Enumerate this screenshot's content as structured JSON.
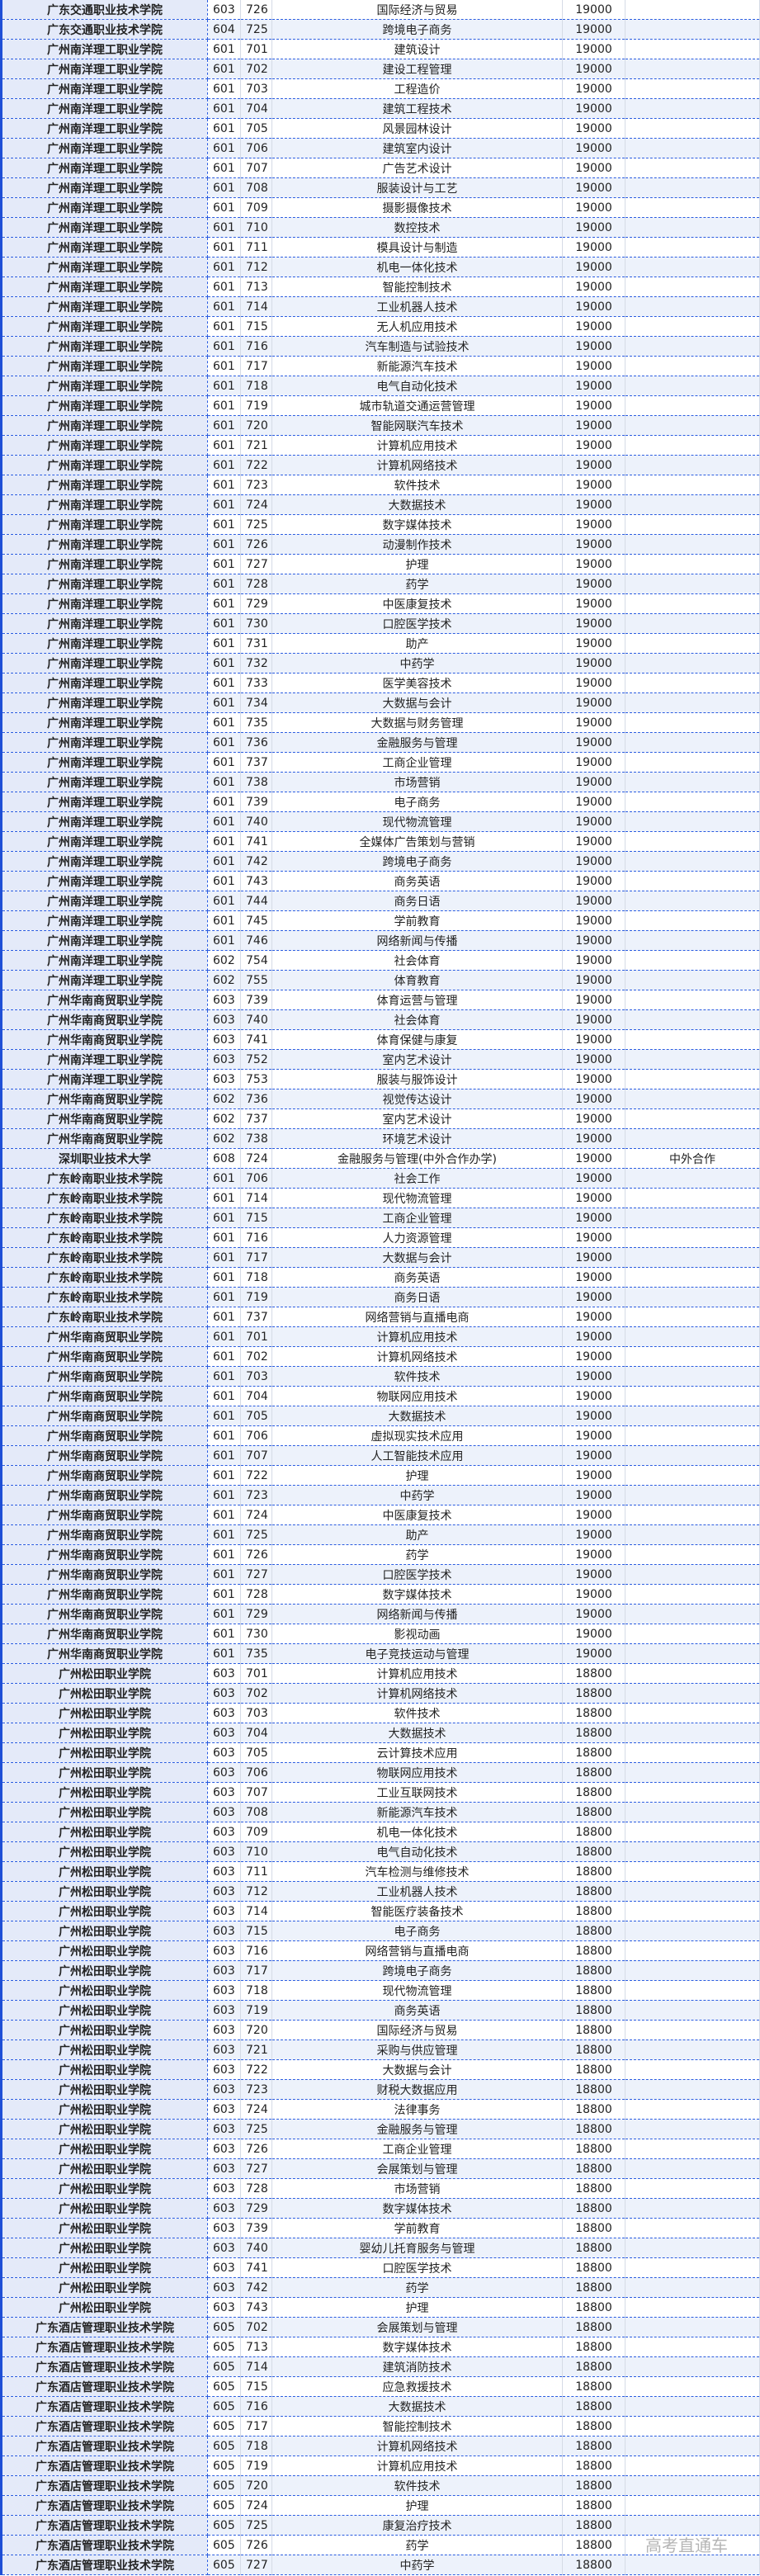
{
  "colors": {
    "border_accent": "#2a5ce0",
    "name_bg": "#e4eaf9",
    "alt_row_bg": "#edf2fb"
  },
  "watermark": "高考直通车",
  "rows": [
    [
      "广东交通职业技术学院",
      "603",
      "726",
      "国际经济与贸易",
      "19000",
      ""
    ],
    [
      "广东交通职业技术学院",
      "604",
      "725",
      "跨境电子商务",
      "19000",
      ""
    ],
    [
      "广州南洋理工职业学院",
      "601",
      "701",
      "建筑设计",
      "19000",
      ""
    ],
    [
      "广州南洋理工职业学院",
      "601",
      "702",
      "建设工程管理",
      "19000",
      ""
    ],
    [
      "广州南洋理工职业学院",
      "601",
      "703",
      "工程造价",
      "19000",
      ""
    ],
    [
      "广州南洋理工职业学院",
      "601",
      "704",
      "建筑工程技术",
      "19000",
      ""
    ],
    [
      "广州南洋理工职业学院",
      "601",
      "705",
      "风景园林设计",
      "19000",
      ""
    ],
    [
      "广州南洋理工职业学院",
      "601",
      "706",
      "建筑室内设计",
      "19000",
      ""
    ],
    [
      "广州南洋理工职业学院",
      "601",
      "707",
      "广告艺术设计",
      "19000",
      ""
    ],
    [
      "广州南洋理工职业学院",
      "601",
      "708",
      "服装设计与工艺",
      "19000",
      ""
    ],
    [
      "广州南洋理工职业学院",
      "601",
      "709",
      "摄影摄像技术",
      "19000",
      ""
    ],
    [
      "广州南洋理工职业学院",
      "601",
      "710",
      "数控技术",
      "19000",
      ""
    ],
    [
      "广州南洋理工职业学院",
      "601",
      "711",
      "模具设计与制造",
      "19000",
      ""
    ],
    [
      "广州南洋理工职业学院",
      "601",
      "712",
      "机电一体化技术",
      "19000",
      ""
    ],
    [
      "广州南洋理工职业学院",
      "601",
      "713",
      "智能控制技术",
      "19000",
      ""
    ],
    [
      "广州南洋理工职业学院",
      "601",
      "714",
      "工业机器人技术",
      "19000",
      ""
    ],
    [
      "广州南洋理工职业学院",
      "601",
      "715",
      "无人机应用技术",
      "19000",
      ""
    ],
    [
      "广州南洋理工职业学院",
      "601",
      "716",
      "汽车制造与试验技术",
      "19000",
      ""
    ],
    [
      "广州南洋理工职业学院",
      "601",
      "717",
      "新能源汽车技术",
      "19000",
      ""
    ],
    [
      "广州南洋理工职业学院",
      "601",
      "718",
      "电气自动化技术",
      "19000",
      ""
    ],
    [
      "广州南洋理工职业学院",
      "601",
      "719",
      "城市轨道交通运营管理",
      "19000",
      ""
    ],
    [
      "广州南洋理工职业学院",
      "601",
      "720",
      "智能网联汽车技术",
      "19000",
      ""
    ],
    [
      "广州南洋理工职业学院",
      "601",
      "721",
      "计算机应用技术",
      "19000",
      ""
    ],
    [
      "广州南洋理工职业学院",
      "601",
      "722",
      "计算机网络技术",
      "19000",
      ""
    ],
    [
      "广州南洋理工职业学院",
      "601",
      "723",
      "软件技术",
      "19000",
      ""
    ],
    [
      "广州南洋理工职业学院",
      "601",
      "724",
      "大数据技术",
      "19000",
      ""
    ],
    [
      "广州南洋理工职业学院",
      "601",
      "725",
      "数字媒体技术",
      "19000",
      ""
    ],
    [
      "广州南洋理工职业学院",
      "601",
      "726",
      "动漫制作技术",
      "19000",
      ""
    ],
    [
      "广州南洋理工职业学院",
      "601",
      "727",
      "护理",
      "19000",
      ""
    ],
    [
      "广州南洋理工职业学院",
      "601",
      "728",
      "药学",
      "19000",
      ""
    ],
    [
      "广州南洋理工职业学院",
      "601",
      "729",
      "中医康复技术",
      "19000",
      ""
    ],
    [
      "广州南洋理工职业学院",
      "601",
      "730",
      "口腔医学技术",
      "19000",
      ""
    ],
    [
      "广州南洋理工职业学院",
      "601",
      "731",
      "助产",
      "19000",
      ""
    ],
    [
      "广州南洋理工职业学院",
      "601",
      "732",
      "中药学",
      "19000",
      ""
    ],
    [
      "广州南洋理工职业学院",
      "601",
      "733",
      "医学美容技术",
      "19000",
      ""
    ],
    [
      "广州南洋理工职业学院",
      "601",
      "734",
      "大数据与会计",
      "19000",
      ""
    ],
    [
      "广州南洋理工职业学院",
      "601",
      "735",
      "大数据与财务管理",
      "19000",
      ""
    ],
    [
      "广州南洋理工职业学院",
      "601",
      "736",
      "金融服务与管理",
      "19000",
      ""
    ],
    [
      "广州南洋理工职业学院",
      "601",
      "737",
      "工商企业管理",
      "19000",
      ""
    ],
    [
      "广州南洋理工职业学院",
      "601",
      "738",
      "市场营销",
      "19000",
      ""
    ],
    [
      "广州南洋理工职业学院",
      "601",
      "739",
      "电子商务",
      "19000",
      ""
    ],
    [
      "广州南洋理工职业学院",
      "601",
      "740",
      "现代物流管理",
      "19000",
      ""
    ],
    [
      "广州南洋理工职业学院",
      "601",
      "741",
      "全媒体广告策划与营销",
      "19000",
      ""
    ],
    [
      "广州南洋理工职业学院",
      "601",
      "742",
      "跨境电子商务",
      "19000",
      ""
    ],
    [
      "广州南洋理工职业学院",
      "601",
      "743",
      "商务英语",
      "19000",
      ""
    ],
    [
      "广州南洋理工职业学院",
      "601",
      "744",
      "商务日语",
      "19000",
      ""
    ],
    [
      "广州南洋理工职业学院",
      "601",
      "745",
      "学前教育",
      "19000",
      ""
    ],
    [
      "广州南洋理工职业学院",
      "601",
      "746",
      "网络新闻与传播",
      "19000",
      ""
    ],
    [
      "广州南洋理工职业学院",
      "602",
      "754",
      "社会体育",
      "19000",
      ""
    ],
    [
      "广州南洋理工职业学院",
      "602",
      "755",
      "体育教育",
      "19000",
      ""
    ],
    [
      "广州华南商贸职业学院",
      "603",
      "739",
      "体育运营与管理",
      "19000",
      ""
    ],
    [
      "广州华南商贸职业学院",
      "603",
      "740",
      "社会体育",
      "19000",
      ""
    ],
    [
      "广州华南商贸职业学院",
      "603",
      "741",
      "体育保健与康复",
      "19000",
      ""
    ],
    [
      "广州南洋理工职业学院",
      "603",
      "752",
      "室内艺术设计",
      "19000",
      ""
    ],
    [
      "广州南洋理工职业学院",
      "603",
      "753",
      "服装与服饰设计",
      "19000",
      ""
    ],
    [
      "广州华南商贸职业学院",
      "602",
      "736",
      "视觉传达设计",
      "19000",
      ""
    ],
    [
      "广州华南商贸职业学院",
      "602",
      "737",
      "室内艺术设计",
      "19000",
      ""
    ],
    [
      "广州华南商贸职业学院",
      "602",
      "738",
      "环境艺术设计",
      "19000",
      ""
    ],
    [
      "深圳职业技术大学",
      "608",
      "724",
      "金融服务与管理(中外合作办学)",
      "19000",
      "中外合作"
    ],
    [
      "广东岭南职业技术学院",
      "601",
      "706",
      "社会工作",
      "19000",
      ""
    ],
    [
      "广东岭南职业技术学院",
      "601",
      "714",
      "现代物流管理",
      "19000",
      ""
    ],
    [
      "广东岭南职业技术学院",
      "601",
      "715",
      "工商企业管理",
      "19000",
      ""
    ],
    [
      "广东岭南职业技术学院",
      "601",
      "716",
      "人力资源管理",
      "19000",
      ""
    ],
    [
      "广东岭南职业技术学院",
      "601",
      "717",
      "大数据与会计",
      "19000",
      ""
    ],
    [
      "广东岭南职业技术学院",
      "601",
      "718",
      "商务英语",
      "19000",
      ""
    ],
    [
      "广东岭南职业技术学院",
      "601",
      "719",
      "商务日语",
      "19000",
      ""
    ],
    [
      "广东岭南职业技术学院",
      "601",
      "737",
      "网络营销与直播电商",
      "19000",
      ""
    ],
    [
      "广州华南商贸职业学院",
      "601",
      "701",
      "计算机应用技术",
      "19000",
      ""
    ],
    [
      "广州华南商贸职业学院",
      "601",
      "702",
      "计算机网络技术",
      "19000",
      ""
    ],
    [
      "广州华南商贸职业学院",
      "601",
      "703",
      "软件技术",
      "19000",
      ""
    ],
    [
      "广州华南商贸职业学院",
      "601",
      "704",
      "物联网应用技术",
      "19000",
      ""
    ],
    [
      "广州华南商贸职业学院",
      "601",
      "705",
      "大数据技术",
      "19000",
      ""
    ],
    [
      "广州华南商贸职业学院",
      "601",
      "706",
      "虚拟现实技术应用",
      "19000",
      ""
    ],
    [
      "广州华南商贸职业学院",
      "601",
      "707",
      "人工智能技术应用",
      "19000",
      ""
    ],
    [
      "广州华南商贸职业学院",
      "601",
      "722",
      "护理",
      "19000",
      ""
    ],
    [
      "广州华南商贸职业学院",
      "601",
      "723",
      "中药学",
      "19000",
      ""
    ],
    [
      "广州华南商贸职业学院",
      "601",
      "724",
      "中医康复技术",
      "19000",
      ""
    ],
    [
      "广州华南商贸职业学院",
      "601",
      "725",
      "助产",
      "19000",
      ""
    ],
    [
      "广州华南商贸职业学院",
      "601",
      "726",
      "药学",
      "19000",
      ""
    ],
    [
      "广州华南商贸职业学院",
      "601",
      "727",
      "口腔医学技术",
      "19000",
      ""
    ],
    [
      "广州华南商贸职业学院",
      "601",
      "728",
      "数字媒体技术",
      "19000",
      ""
    ],
    [
      "广州华南商贸职业学院",
      "601",
      "729",
      "网络新闻与传播",
      "19000",
      ""
    ],
    [
      "广州华南商贸职业学院",
      "601",
      "730",
      "影视动画",
      "19000",
      ""
    ],
    [
      "广州华南商贸职业学院",
      "601",
      "735",
      "电子竞技运动与管理",
      "19000",
      ""
    ],
    [
      "广州松田职业学院",
      "603",
      "701",
      "计算机应用技术",
      "18800",
      ""
    ],
    [
      "广州松田职业学院",
      "603",
      "702",
      "计算机网络技术",
      "18800",
      ""
    ],
    [
      "广州松田职业学院",
      "603",
      "703",
      "软件技术",
      "18800",
      ""
    ],
    [
      "广州松田职业学院",
      "603",
      "704",
      "大数据技术",
      "18800",
      ""
    ],
    [
      "广州松田职业学院",
      "603",
      "705",
      "云计算技术应用",
      "18800",
      ""
    ],
    [
      "广州松田职业学院",
      "603",
      "706",
      "物联网应用技术",
      "18800",
      ""
    ],
    [
      "广州松田职业学院",
      "603",
      "707",
      "工业互联网技术",
      "18800",
      ""
    ],
    [
      "广州松田职业学院",
      "603",
      "708",
      "新能源汽车技术",
      "18800",
      ""
    ],
    [
      "广州松田职业学院",
      "603",
      "709",
      "机电一体化技术",
      "18800",
      ""
    ],
    [
      "广州松田职业学院",
      "603",
      "710",
      "电气自动化技术",
      "18800",
      ""
    ],
    [
      "广州松田职业学院",
      "603",
      "711",
      "汽车检测与维修技术",
      "18800",
      ""
    ],
    [
      "广州松田职业学院",
      "603",
      "712",
      "工业机器人技术",
      "18800",
      ""
    ],
    [
      "广州松田职业学院",
      "603",
      "714",
      "智能医疗装备技术",
      "18800",
      ""
    ],
    [
      "广州松田职业学院",
      "603",
      "715",
      "电子商务",
      "18800",
      ""
    ],
    [
      "广州松田职业学院",
      "603",
      "716",
      "网络营销与直播电商",
      "18800",
      ""
    ],
    [
      "广州松田职业学院",
      "603",
      "717",
      "跨境电子商务",
      "18800",
      ""
    ],
    [
      "广州松田职业学院",
      "603",
      "718",
      "现代物流管理",
      "18800",
      ""
    ],
    [
      "广州松田职业学院",
      "603",
      "719",
      "商务英语",
      "18800",
      ""
    ],
    [
      "广州松田职业学院",
      "603",
      "720",
      "国际经济与贸易",
      "18800",
      ""
    ],
    [
      "广州松田职业学院",
      "603",
      "721",
      "采购与供应管理",
      "18800",
      ""
    ],
    [
      "广州松田职业学院",
      "603",
      "722",
      "大数据与会计",
      "18800",
      ""
    ],
    [
      "广州松田职业学院",
      "603",
      "723",
      "财税大数据应用",
      "18800",
      ""
    ],
    [
      "广州松田职业学院",
      "603",
      "724",
      "法律事务",
      "18800",
      ""
    ],
    [
      "广州松田职业学院",
      "603",
      "725",
      "金融服务与管理",
      "18800",
      ""
    ],
    [
      "广州松田职业学院",
      "603",
      "726",
      "工商企业管理",
      "18800",
      ""
    ],
    [
      "广州松田职业学院",
      "603",
      "727",
      "会展策划与管理",
      "18800",
      ""
    ],
    [
      "广州松田职业学院",
      "603",
      "728",
      "市场营销",
      "18800",
      ""
    ],
    [
      "广州松田职业学院",
      "603",
      "729",
      "数字媒体技术",
      "18800",
      ""
    ],
    [
      "广州松田职业学院",
      "603",
      "739",
      "学前教育",
      "18800",
      ""
    ],
    [
      "广州松田职业学院",
      "603",
      "740",
      "婴幼儿托育服务与管理",
      "18800",
      ""
    ],
    [
      "广州松田职业学院",
      "603",
      "741",
      "口腔医学技术",
      "18800",
      ""
    ],
    [
      "广州松田职业学院",
      "603",
      "742",
      "药学",
      "18800",
      ""
    ],
    [
      "广州松田职业学院",
      "603",
      "743",
      "护理",
      "18800",
      ""
    ],
    [
      "广东酒店管理职业技术学院",
      "605",
      "702",
      "会展策划与管理",
      "18800",
      ""
    ],
    [
      "广东酒店管理职业技术学院",
      "605",
      "713",
      "数字媒体技术",
      "18800",
      ""
    ],
    [
      "广东酒店管理职业技术学院",
      "605",
      "714",
      "建筑消防技术",
      "18800",
      ""
    ],
    [
      "广东酒店管理职业技术学院",
      "605",
      "715",
      "应急救援技术",
      "18800",
      ""
    ],
    [
      "广东酒店管理职业技术学院",
      "605",
      "716",
      "大数据技术",
      "18800",
      ""
    ],
    [
      "广东酒店管理职业技术学院",
      "605",
      "717",
      "智能控制技术",
      "18800",
      ""
    ],
    [
      "广东酒店管理职业技术学院",
      "605",
      "718",
      "计算机网络技术",
      "18800",
      ""
    ],
    [
      "广东酒店管理职业技术学院",
      "605",
      "719",
      "计算机应用技术",
      "18800",
      ""
    ],
    [
      "广东酒店管理职业技术学院",
      "605",
      "720",
      "软件技术",
      "18800",
      ""
    ],
    [
      "广东酒店管理职业技术学院",
      "605",
      "724",
      "护理",
      "18800",
      ""
    ],
    [
      "广东酒店管理职业技术学院",
      "605",
      "725",
      "康复治疗技术",
      "18800",
      ""
    ],
    [
      "广东酒店管理职业技术学院",
      "605",
      "726",
      "药学",
      "18800",
      ""
    ],
    [
      "广东酒店管理职业技术学院",
      "605",
      "727",
      "中药学",
      "18800",
      ""
    ]
  ]
}
